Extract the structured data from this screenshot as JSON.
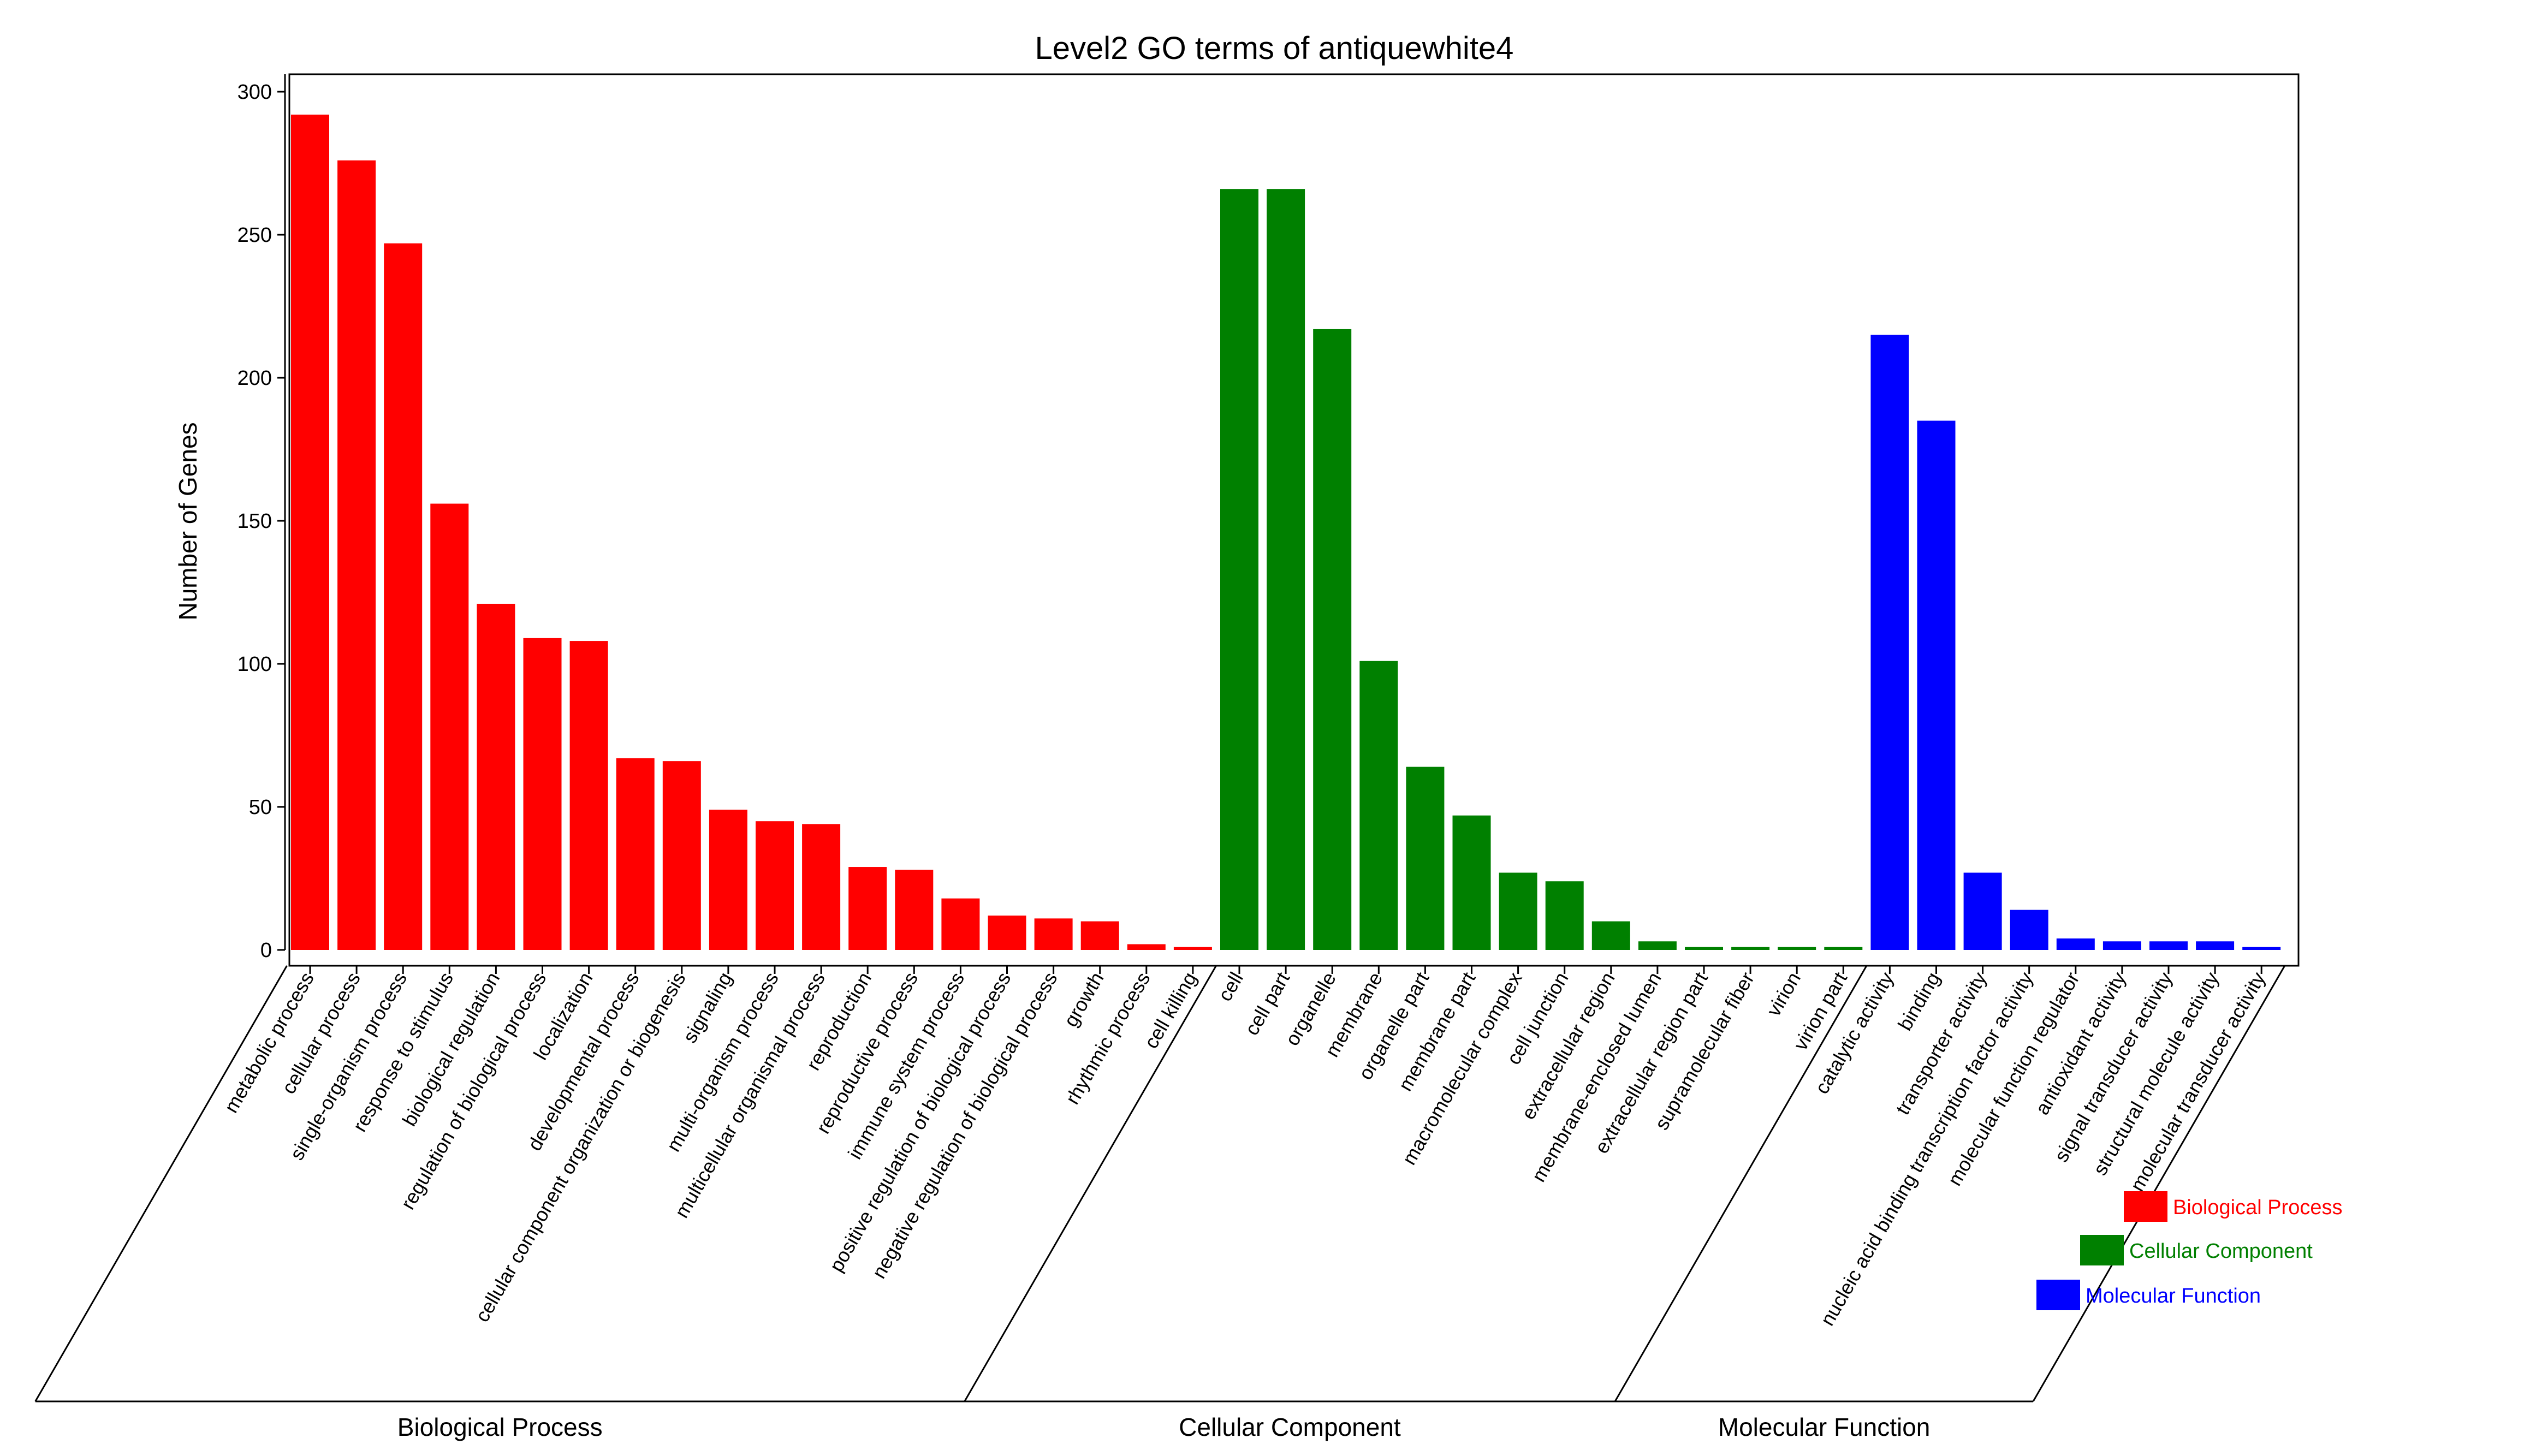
{
  "chart_data": {
    "type": "bar",
    "title": "Level2 GO terms of antiquewhite4",
    "ylabel": "Number of Genes",
    "ylim": [
      0,
      305
    ],
    "yticks": [
      0,
      50,
      100,
      150,
      200,
      250,
      300
    ],
    "grid": false,
    "legend_position": "bottom-right",
    "groups": [
      {
        "name": "Biological Process",
        "color": "#ff0000",
        "categories": [
          "metabolic process",
          "cellular process",
          "single-organism process",
          "response to stimulus",
          "biological regulation",
          "regulation of biological process",
          "localization",
          "developmental process",
          "cellular component organization or biogenesis",
          "signaling",
          "multi-organism process",
          "multicellular organismal process",
          "reproduction",
          "reproductive process",
          "immune system process",
          "positive regulation of biological process",
          "negative regulation of biological process",
          "growth",
          "rhythmic process",
          "cell killing"
        ],
        "values": [
          292,
          276,
          247,
          156,
          121,
          109,
          108,
          67,
          66,
          49,
          45,
          44,
          29,
          28,
          18,
          12,
          11,
          10,
          2,
          1
        ]
      },
      {
        "name": "Cellular Component",
        "color": "#008000",
        "categories": [
          "cell",
          "cell part",
          "organelle",
          "membrane",
          "organelle part",
          "membrane part",
          "macromolecular complex",
          "cell junction",
          "extracellular region",
          "membrane-enclosed lumen",
          "extracellular region part",
          "supramolecular fiber",
          "virion",
          "virion part"
        ],
        "values": [
          266,
          266,
          217,
          101,
          64,
          47,
          27,
          24,
          10,
          3,
          1,
          1,
          1,
          1
        ]
      },
      {
        "name": "Molecular Function",
        "color": "#0000ff",
        "categories": [
          "catalytic activity",
          "binding",
          "transporter activity",
          "nucleic acid binding transcription factor activity",
          "molecular function regulator",
          "antioxidant activity",
          "signal transducer activity",
          "structural molecule activity",
          "molecular transducer activity"
        ],
        "values": [
          215,
          185,
          27,
          14,
          4,
          3,
          3,
          3,
          1
        ]
      }
    ]
  }
}
